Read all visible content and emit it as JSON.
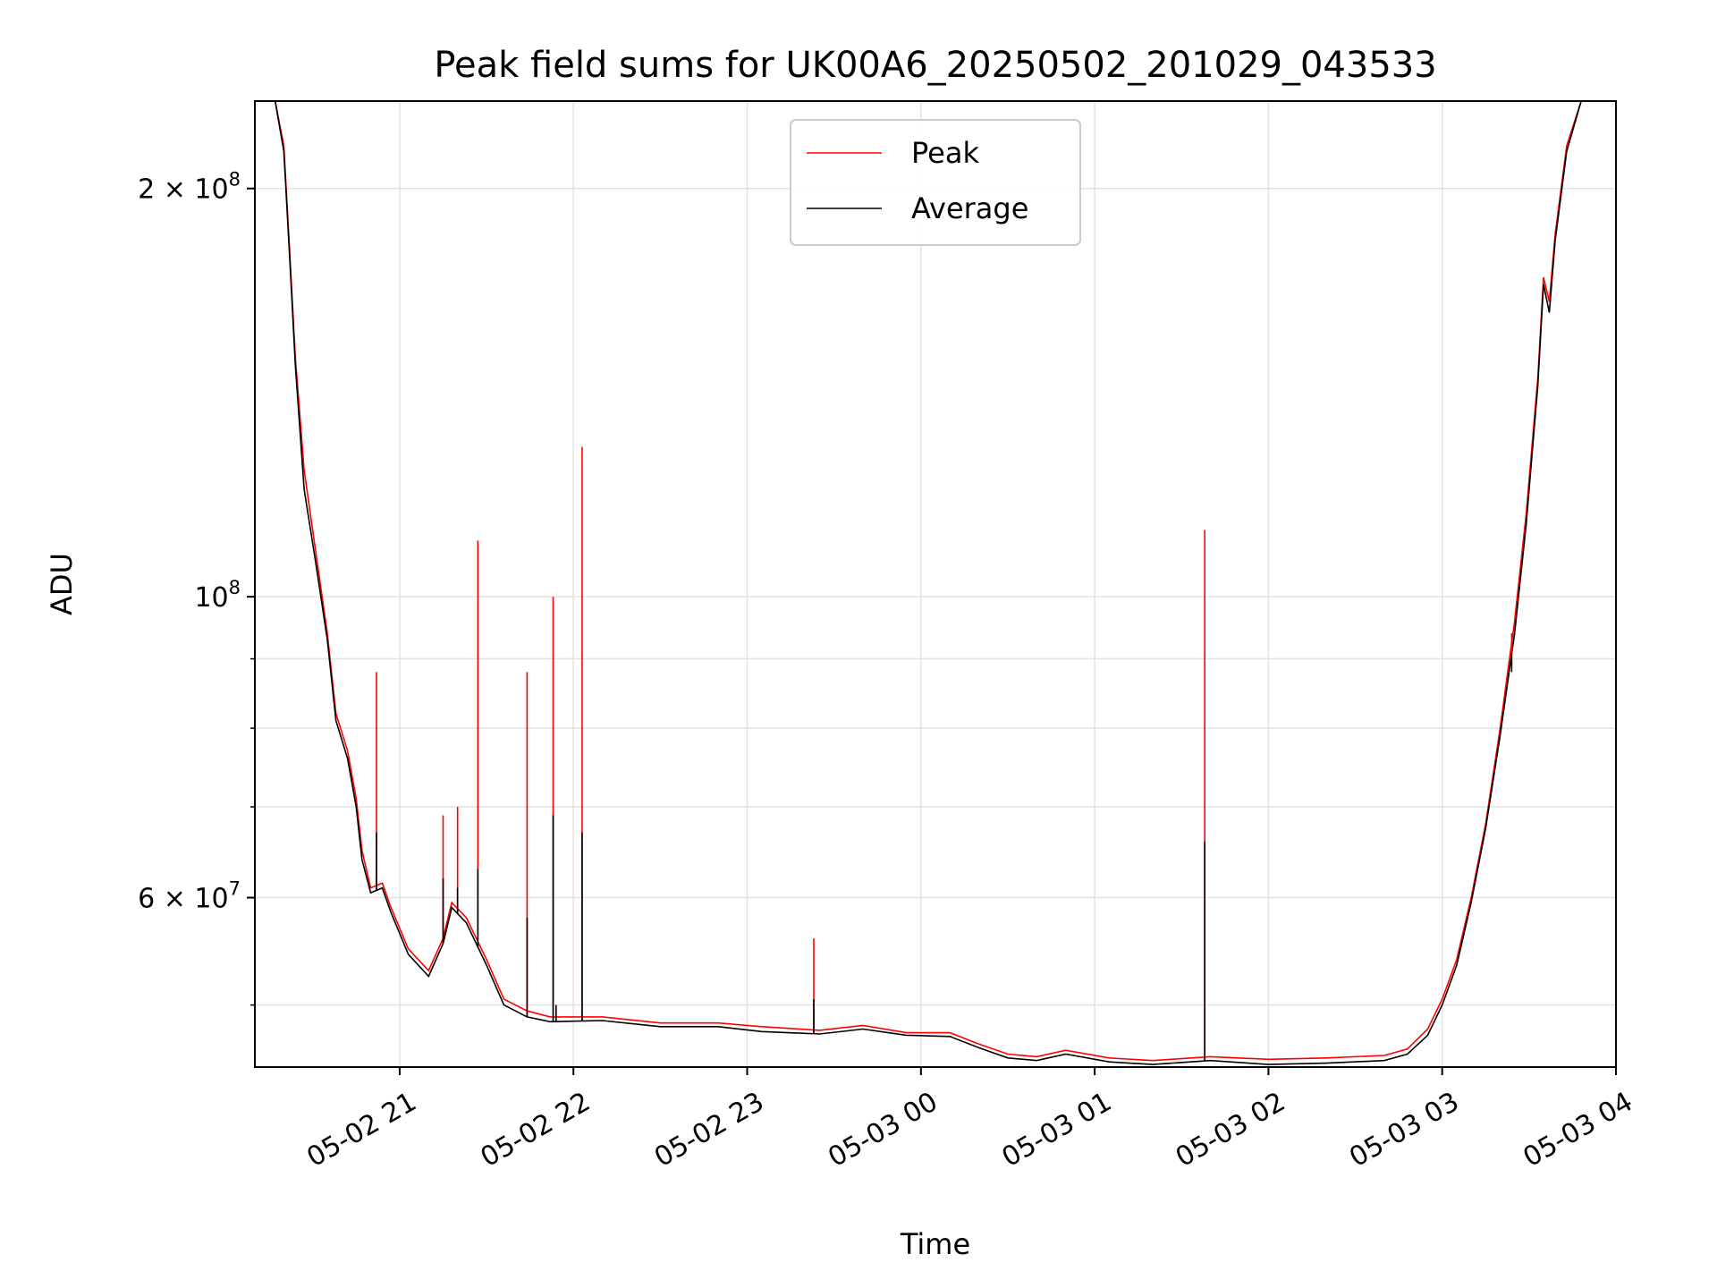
{
  "chart_data": {
    "type": "line",
    "title": "Peak field sums for UK00A6_20250502_201029_043533",
    "xlabel": "Time",
    "ylabel": "ADU",
    "y_scale": "log",
    "grid": true,
    "legend_placement": "upper-center",
    "xlim": [
      "2025-05-02 20:10",
      "2025-05-03 04:00"
    ],
    "ylim": [
      45000000,
      232000000
    ],
    "x_ticks": [
      {
        "value": "2025-05-02 21:00",
        "label": "05-02 21"
      },
      {
        "value": "2025-05-02 22:00",
        "label": "05-02 22"
      },
      {
        "value": "2025-05-02 23:00",
        "label": "05-02 23"
      },
      {
        "value": "2025-05-03 00:00",
        "label": "05-03 00"
      },
      {
        "value": "2025-05-03 01:00",
        "label": "05-03 01"
      },
      {
        "value": "2025-05-03 02:00",
        "label": "05-03 02"
      },
      {
        "value": "2025-05-03 03:00",
        "label": "05-03 03"
      },
      {
        "value": "2025-05-03 04:00",
        "label": "05-03 04"
      }
    ],
    "y_major_ticks": [
      {
        "value": 200000000,
        "base": "2 × 10",
        "exp": "8"
      },
      {
        "value": 100000000,
        "base": "10",
        "exp": "8"
      },
      {
        "value": 60000000,
        "base": "6 × 10",
        "exp": "7"
      }
    ],
    "y_minor_gridlines": [
      50000000,
      70000000,
      80000000,
      90000000
    ],
    "series": [
      {
        "name": "Peak",
        "color": "#ff0000",
        "points": [
          [
            "2025-05-02 20:10",
            232000000
          ],
          [
            "2025-05-02 20:17",
            232000000
          ],
          [
            "2025-05-02 20:20",
            215000000
          ],
          [
            "2025-05-02 20:22",
            180000000
          ],
          [
            "2025-05-02 20:24",
            150000000
          ],
          [
            "2025-05-02 20:27",
            124000000
          ],
          [
            "2025-05-02 20:31",
            108000000
          ],
          [
            "2025-05-02 20:35",
            94000000
          ],
          [
            "2025-05-02 20:38",
            82000000
          ],
          [
            "2025-05-02 20:42",
            77000000
          ],
          [
            "2025-05-02 20:45",
            71000000
          ],
          [
            "2025-05-02 20:47",
            65000000
          ],
          [
            "2025-05-02 20:50",
            61000000
          ],
          [
            "2025-05-02 20:54",
            61500000
          ],
          [
            "2025-05-02 20:57",
            59000000
          ],
          [
            "2025-05-02 21:03",
            55000000
          ],
          [
            "2025-05-02 21:10",
            53000000
          ],
          [
            "2025-05-02 21:15",
            56000000
          ],
          [
            "2025-05-02 21:18",
            59500000
          ],
          [
            "2025-05-02 21:23",
            58000000
          ],
          [
            "2025-05-02 21:30",
            54000000
          ],
          [
            "2025-05-02 21:36",
            50500000
          ],
          [
            "2025-05-02 21:44",
            49500000
          ],
          [
            "2025-05-02 21:52",
            49000000
          ],
          [
            "2025-05-02 22:10",
            49000000
          ],
          [
            "2025-05-02 22:30",
            48500000
          ],
          [
            "2025-05-02 22:50",
            48500000
          ],
          [
            "2025-05-02 23:05",
            48200000
          ],
          [
            "2025-05-02 23:25",
            47900000
          ],
          [
            "2025-05-02 23:40",
            48300000
          ],
          [
            "2025-05-02 23:55",
            47700000
          ],
          [
            "2025-05-03 00:10",
            47700000
          ],
          [
            "2025-05-03 00:20",
            46800000
          ],
          [
            "2025-05-03 00:30",
            46000000
          ],
          [
            "2025-05-03 00:40",
            45800000
          ],
          [
            "2025-05-03 00:50",
            46300000
          ],
          [
            "2025-05-03 01:05",
            45700000
          ],
          [
            "2025-05-03 01:20",
            45500000
          ],
          [
            "2025-05-03 01:40",
            45800000
          ],
          [
            "2025-05-03 02:00",
            45600000
          ],
          [
            "2025-05-03 02:20",
            45700000
          ],
          [
            "2025-05-03 02:40",
            45900000
          ],
          [
            "2025-05-03 02:48",
            46400000
          ],
          [
            "2025-05-03 02:55",
            48000000
          ],
          [
            "2025-05-03 03:00",
            50500000
          ],
          [
            "2025-05-03 03:05",
            54000000
          ],
          [
            "2025-05-03 03:10",
            60000000
          ],
          [
            "2025-05-03 03:15",
            68000000
          ],
          [
            "2025-05-03 03:20",
            80000000
          ],
          [
            "2025-05-03 03:25",
            96000000
          ],
          [
            "2025-05-03 03:29",
            115000000
          ],
          [
            "2025-05-03 03:33",
            145000000
          ],
          [
            "2025-05-03 03:35",
            172000000
          ],
          [
            "2025-05-03 03:37",
            165000000
          ],
          [
            "2025-05-03 03:39",
            185000000
          ],
          [
            "2025-05-03 03:43",
            215000000
          ],
          [
            "2025-05-03 03:48",
            232000000
          ],
          [
            "2025-05-03 04:00",
            232000000
          ]
        ]
      },
      {
        "name": "Average",
        "color": "#000000",
        "points": [
          [
            "2025-05-02 20:10",
            232000000
          ],
          [
            "2025-05-02 20:17",
            232000000
          ],
          [
            "2025-05-02 20:20",
            213000000
          ],
          [
            "2025-05-02 20:22",
            178000000
          ],
          [
            "2025-05-02 20:24",
            148000000
          ],
          [
            "2025-05-02 20:27",
            120000000
          ],
          [
            "2025-05-02 20:31",
            106000000
          ],
          [
            "2025-05-02 20:35",
            93000000
          ],
          [
            "2025-05-02 20:38",
            81000000
          ],
          [
            "2025-05-02 20:42",
            76000000
          ],
          [
            "2025-05-02 20:45",
            70000000
          ],
          [
            "2025-05-02 20:47",
            64000000
          ],
          [
            "2025-05-02 20:50",
            60500000
          ],
          [
            "2025-05-02 20:54",
            61000000
          ],
          [
            "2025-05-02 20:57",
            58500000
          ],
          [
            "2025-05-02 21:03",
            54500000
          ],
          [
            "2025-05-02 21:10",
            52500000
          ],
          [
            "2025-05-02 21:15",
            55500000
          ],
          [
            "2025-05-02 21:18",
            59000000
          ],
          [
            "2025-05-02 21:23",
            57500000
          ],
          [
            "2025-05-02 21:30",
            53500000
          ],
          [
            "2025-05-02 21:36",
            50000000
          ],
          [
            "2025-05-02 21:44",
            49000000
          ],
          [
            "2025-05-02 21:52",
            48600000
          ],
          [
            "2025-05-02 22:10",
            48700000
          ],
          [
            "2025-05-02 22:30",
            48200000
          ],
          [
            "2025-05-02 22:50",
            48200000
          ],
          [
            "2025-05-02 23:05",
            47800000
          ],
          [
            "2025-05-02 23:25",
            47600000
          ],
          [
            "2025-05-02 23:40",
            48000000
          ],
          [
            "2025-05-02 23:55",
            47500000
          ],
          [
            "2025-05-03 00:10",
            47400000
          ],
          [
            "2025-05-03 00:20",
            46500000
          ],
          [
            "2025-05-03 00:30",
            45700000
          ],
          [
            "2025-05-03 00:40",
            45500000
          ],
          [
            "2025-05-03 00:50",
            46000000
          ],
          [
            "2025-05-03 01:05",
            45400000
          ],
          [
            "2025-05-03 01:20",
            45200000
          ],
          [
            "2025-05-03 01:40",
            45500000
          ],
          [
            "2025-05-03 02:00",
            45200000
          ],
          [
            "2025-05-03 02:20",
            45300000
          ],
          [
            "2025-05-03 02:40",
            45500000
          ],
          [
            "2025-05-03 02:48",
            46000000
          ],
          [
            "2025-05-03 02:55",
            47500000
          ],
          [
            "2025-05-03 03:00",
            50000000
          ],
          [
            "2025-05-03 03:05",
            53500000
          ],
          [
            "2025-05-03 03:10",
            59500000
          ],
          [
            "2025-05-03 03:15",
            67500000
          ],
          [
            "2025-05-03 03:20",
            79000000
          ],
          [
            "2025-05-03 03:25",
            94000000
          ],
          [
            "2025-05-03 03:29",
            113000000
          ],
          [
            "2025-05-03 03:33",
            143000000
          ],
          [
            "2025-05-03 03:35",
            170000000
          ],
          [
            "2025-05-03 03:37",
            162000000
          ],
          [
            "2025-05-03 03:39",
            183000000
          ],
          [
            "2025-05-03 03:43",
            213000000
          ],
          [
            "2025-05-03 03:48",
            232000000
          ],
          [
            "2025-05-03 04:00",
            232000000
          ]
        ]
      }
    ],
    "spikes": [
      {
        "x": "2025-05-02 20:52",
        "peak": 88000000,
        "average": 67000000
      },
      {
        "x": "2025-05-02 21:15",
        "peak": 69000000,
        "average": 62000000
      },
      {
        "x": "2025-05-02 21:20",
        "peak": 70000000,
        "average": 61000000
      },
      {
        "x": "2025-05-02 21:27",
        "peak": 110000000,
        "average": 63000000
      },
      {
        "x": "2025-05-02 21:44",
        "peak": 88000000,
        "average": 58000000
      },
      {
        "x": "2025-05-02 21:53",
        "peak": 100000000,
        "average": 69000000
      },
      {
        "x": "2025-05-02 21:54",
        "peak": 50000000,
        "average": 50000000
      },
      {
        "x": "2025-05-02 22:03",
        "peak": 129000000,
        "average": 67000000
      },
      {
        "x": "2025-05-02 23:23",
        "peak": 56000000,
        "average": 50500000
      },
      {
        "x": "2025-05-03 01:38",
        "peak": 112000000,
        "average": 66000000
      },
      {
        "x": "2025-05-03 03:24",
        "peak": 94000000,
        "average": 88000000
      }
    ]
  }
}
